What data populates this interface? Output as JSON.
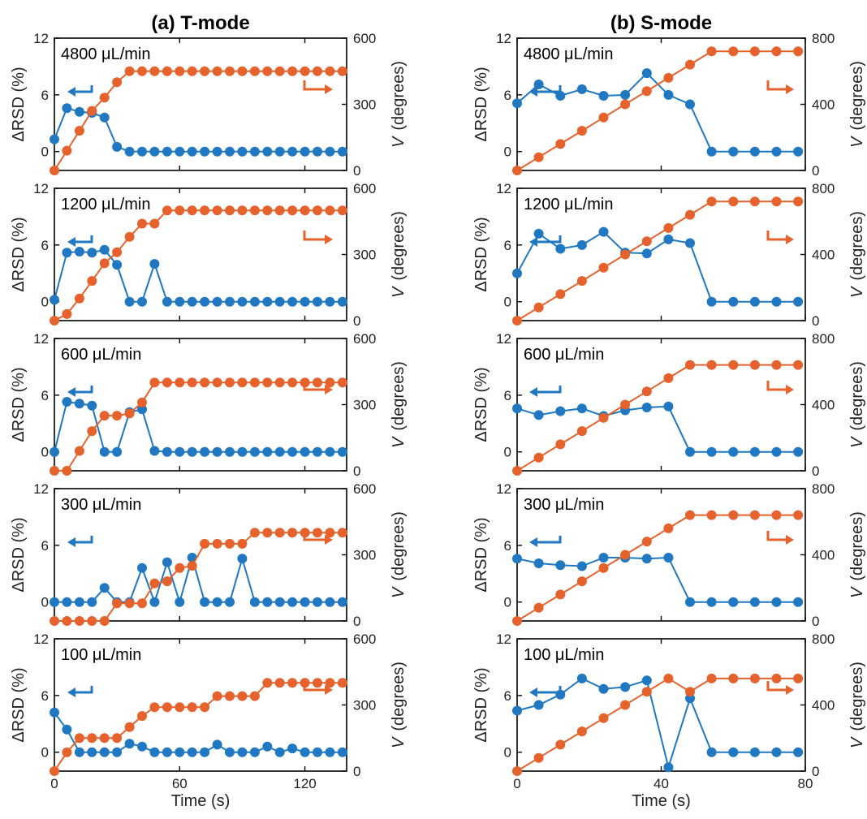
{
  "chart_data": [
    {
      "type": "line",
      "panel_title": "(a) T-mode",
      "annotation": "4800 μL/min",
      "xlabel": "",
      "ylabel": "ΔRSD (%)",
      "y2label": "(degrees)",
      "y2label_prefix": "V",
      "xlim": [
        0,
        140
      ],
      "ylim": [
        -2,
        12
      ],
      "y2lim": [
        0,
        600
      ],
      "x_ticks": [
        0,
        60,
        120
      ],
      "y_ticks": [
        0,
        6,
        12
      ],
      "y2_ticks": [
        0,
        300,
        600
      ],
      "x_tick_labels": [
        "",
        "",
        ""
      ],
      "y_tick_labels": [
        "0",
        "6",
        "12"
      ],
      "y2_tick_labels": [
        "0",
        "300",
        "600"
      ],
      "x": [
        0,
        6,
        12,
        18,
        24,
        30,
        36,
        42,
        48,
        54,
        60,
        66,
        72,
        78,
        84,
        90,
        96,
        102,
        108,
        114,
        120,
        126,
        132,
        138
      ],
      "series": [
        {
          "axis": "left",
          "color": "#1f78c1",
          "values": [
            1.3,
            4.6,
            4.2,
            4.1,
            3.6,
            0.5,
            0,
            0,
            0,
            0,
            0,
            0,
            0,
            0,
            0,
            0,
            0,
            0,
            0,
            0,
            0,
            0,
            0,
            0
          ]
        },
        {
          "axis": "right",
          "color": "#e5622d",
          "values": [
            0,
            90,
            180,
            270,
            330,
            400,
            450,
            450,
            450,
            450,
            450,
            450,
            450,
            450,
            450,
            450,
            450,
            450,
            450,
            450,
            450,
            450,
            450,
            450
          ]
        }
      ]
    },
    {
      "type": "line",
      "panel_title": "(b) S-mode",
      "annotation": "4800 μL/min",
      "xlabel": "",
      "ylabel": "ΔRSD (%)",
      "y2label": "(degrees)",
      "y2label_prefix": "V",
      "xlim": [
        0,
        80
      ],
      "ylim": [
        -2,
        12
      ],
      "y2lim": [
        0,
        800
      ],
      "x_ticks": [
        0,
        40,
        80
      ],
      "y_ticks": [
        0,
        6,
        12
      ],
      "y2_ticks": [
        0,
        400,
        800
      ],
      "x_tick_labels": [
        "",
        "",
        ""
      ],
      "y_tick_labels": [
        "0",
        "6",
        "12"
      ],
      "y2_tick_labels": [
        "0",
        "400",
        "800"
      ],
      "x": [
        0,
        6,
        12,
        18,
        24,
        30,
        36,
        42,
        48,
        54,
        60,
        66,
        72,
        78
      ],
      "series": [
        {
          "axis": "left",
          "color": "#1f78c1",
          "values": [
            5.1,
            7.1,
            5.9,
            6.6,
            5.9,
            6.0,
            8.3,
            6.0,
            5.0,
            0,
            0,
            0,
            0,
            0
          ]
        },
        {
          "axis": "right",
          "color": "#e5622d",
          "values": [
            0,
            80,
            160,
            240,
            320,
            400,
            480,
            560,
            640,
            720,
            720,
            720,
            720,
            720
          ]
        }
      ]
    },
    {
      "type": "line",
      "annotation": "1200 μL/min",
      "xlabel": "",
      "ylabel": "ΔRSD (%)",
      "y2label": "(degrees)",
      "y2label_prefix": "V",
      "xlim": [
        0,
        140
      ],
      "ylim": [
        -2,
        12
      ],
      "y2lim": [
        0,
        600
      ],
      "x_ticks": [
        0,
        60,
        120
      ],
      "y_ticks": [
        0,
        6,
        12
      ],
      "y2_ticks": [
        0,
        300,
        600
      ],
      "x_tick_labels": [
        "",
        "",
        ""
      ],
      "y_tick_labels": [
        "0",
        "6",
        "12"
      ],
      "y2_tick_labels": [
        "0",
        "300",
        "600"
      ],
      "x": [
        0,
        6,
        12,
        18,
        24,
        30,
        36,
        42,
        48,
        54,
        60,
        66,
        72,
        78,
        84,
        90,
        96,
        102,
        108,
        114,
        120,
        126,
        132,
        138
      ],
      "series": [
        {
          "axis": "left",
          "color": "#1f78c1",
          "values": [
            0.2,
            5.2,
            5.3,
            5.2,
            5.5,
            3.9,
            0,
            0,
            4.0,
            0,
            0,
            0,
            0,
            0,
            0,
            0,
            0,
            0,
            0,
            0,
            0,
            0,
            0,
            0
          ]
        },
        {
          "axis": "right",
          "color": "#e5622d",
          "values": [
            0,
            30,
            100,
            180,
            260,
            310,
            380,
            440,
            440,
            500,
            500,
            500,
            500,
            500,
            500,
            500,
            500,
            500,
            500,
            500,
            500,
            500,
            500,
            500
          ]
        }
      ]
    },
    {
      "type": "line",
      "annotation": "1200 μL/min",
      "xlabel": "",
      "ylabel": "ΔRSD (%)",
      "y2label": "(degrees)",
      "y2label_prefix": "V",
      "xlim": [
        0,
        80
      ],
      "ylim": [
        -2,
        12
      ],
      "y2lim": [
        0,
        800
      ],
      "x_ticks": [
        0,
        40,
        80
      ],
      "y_ticks": [
        0,
        6,
        12
      ],
      "y2_ticks": [
        0,
        400,
        800
      ],
      "x_tick_labels": [
        "",
        "",
        ""
      ],
      "y_tick_labels": [
        "0",
        "6",
        "12"
      ],
      "y2_tick_labels": [
        "0",
        "400",
        "800"
      ],
      "x": [
        0,
        6,
        12,
        18,
        24,
        30,
        36,
        42,
        48,
        54,
        60,
        66,
        72,
        78
      ],
      "series": [
        {
          "axis": "left",
          "color": "#1f78c1",
          "values": [
            3.0,
            7.2,
            5.6,
            6.0,
            7.4,
            5.2,
            5.1,
            6.6,
            6.2,
            0,
            0,
            0,
            0,
            0
          ]
        },
        {
          "axis": "right",
          "color": "#e5622d",
          "values": [
            0,
            80,
            160,
            240,
            320,
            400,
            480,
            560,
            640,
            720,
            720,
            720,
            720,
            720
          ]
        }
      ]
    },
    {
      "type": "line",
      "annotation": "600 μL/min",
      "xlabel": "",
      "ylabel": "ΔRSD (%)",
      "y2label": "(degrees)",
      "y2label_prefix": "V",
      "xlim": [
        0,
        140
      ],
      "ylim": [
        -2,
        12
      ],
      "y2lim": [
        0,
        600
      ],
      "x_ticks": [
        0,
        60,
        120
      ],
      "y_ticks": [
        0,
        6,
        12
      ],
      "y2_ticks": [
        0,
        300,
        600
      ],
      "x_tick_labels": [
        "",
        "",
        ""
      ],
      "y_tick_labels": [
        "0",
        "6",
        "12"
      ],
      "y2_tick_labels": [
        "0",
        "300",
        "600"
      ],
      "x": [
        0,
        6,
        12,
        18,
        24,
        30,
        36,
        42,
        48,
        54,
        60,
        66,
        72,
        78,
        84,
        90,
        96,
        102,
        108,
        114,
        120,
        126,
        132,
        138
      ],
      "series": [
        {
          "axis": "left",
          "color": "#1f78c1",
          "values": [
            0,
            5.3,
            5.1,
            4.9,
            0,
            0,
            4.2,
            4.5,
            0.1,
            0,
            0,
            0,
            0,
            0,
            0,
            0,
            0,
            0,
            0,
            0,
            0,
            0,
            0,
            0
          ]
        },
        {
          "axis": "right",
          "color": "#e5622d",
          "values": [
            0,
            0,
            90,
            180,
            250,
            250,
            260,
            310,
            400,
            400,
            400,
            400,
            400,
            400,
            400,
            400,
            400,
            400,
            400,
            400,
            400,
            400,
            400,
            400
          ]
        }
      ]
    },
    {
      "type": "line",
      "annotation": "600 μL/min",
      "xlabel": "",
      "ylabel": "ΔRSD (%)",
      "y2label": "(degrees)",
      "y2label_prefix": "V",
      "xlim": [
        0,
        80
      ],
      "ylim": [
        -2,
        12
      ],
      "y2lim": [
        0,
        800
      ],
      "x_ticks": [
        0,
        40,
        80
      ],
      "y_ticks": [
        0,
        6,
        12
      ],
      "y2_ticks": [
        0,
        400,
        800
      ],
      "x_tick_labels": [
        "",
        "",
        ""
      ],
      "y_tick_labels": [
        "0",
        "6",
        "12"
      ],
      "y2_tick_labels": [
        "0",
        "400",
        "800"
      ],
      "x": [
        0,
        6,
        12,
        18,
        24,
        30,
        36,
        42,
        48,
        54,
        60,
        66,
        72,
        78
      ],
      "series": [
        {
          "axis": "left",
          "color": "#1f78c1",
          "values": [
            4.6,
            3.9,
            4.3,
            4.6,
            3.8,
            4.4,
            4.7,
            4.8,
            0,
            0,
            0,
            0,
            0,
            0
          ]
        },
        {
          "axis": "right",
          "color": "#e5622d",
          "values": [
            0,
            80,
            160,
            240,
            320,
            400,
            480,
            560,
            640,
            640,
            640,
            640,
            640,
            640
          ]
        }
      ]
    },
    {
      "type": "line",
      "annotation": "300 μL/min",
      "xlabel": "",
      "ylabel": "ΔRSD (%)",
      "y2label": "(degrees)",
      "y2label_prefix": "V",
      "xlim": [
        0,
        140
      ],
      "ylim": [
        -2,
        12
      ],
      "y2lim": [
        0,
        600
      ],
      "x_ticks": [
        0,
        60,
        120
      ],
      "y_ticks": [
        0,
        6,
        12
      ],
      "y2_ticks": [
        0,
        300,
        600
      ],
      "x_tick_labels": [
        "",
        "",
        ""
      ],
      "y_tick_labels": [
        "0",
        "6",
        "12"
      ],
      "y2_tick_labels": [
        "0",
        "300",
        "600"
      ],
      "x": [
        0,
        6,
        12,
        18,
        24,
        30,
        36,
        42,
        48,
        54,
        60,
        66,
        72,
        78,
        84,
        90,
        96,
        102,
        108,
        114,
        120,
        126,
        132,
        138
      ],
      "series": [
        {
          "axis": "left",
          "color": "#1f78c1",
          "values": [
            0,
            0,
            0,
            0,
            1.5,
            0,
            0,
            3.6,
            0,
            4.2,
            0,
            4.7,
            0,
            0,
            0,
            4.6,
            0,
            0,
            0,
            0,
            0,
            0,
            0,
            0
          ]
        },
        {
          "axis": "right",
          "color": "#e5622d",
          "values": [
            0,
            0,
            0,
            0,
            0,
            80,
            80,
            80,
            170,
            180,
            240,
            250,
            350,
            350,
            350,
            350,
            400,
            400,
            400,
            400,
            400,
            400,
            400,
            400
          ]
        }
      ]
    },
    {
      "type": "line",
      "annotation": "300 μL/min",
      "xlabel": "",
      "ylabel": "ΔRSD (%)",
      "y2label": "(degrees)",
      "y2label_prefix": "V",
      "xlim": [
        0,
        80
      ],
      "ylim": [
        -2,
        12
      ],
      "y2lim": [
        0,
        800
      ],
      "x_ticks": [
        0,
        40,
        80
      ],
      "y_ticks": [
        0,
        6,
        12
      ],
      "y2_ticks": [
        0,
        400,
        800
      ],
      "x_tick_labels": [
        "",
        "",
        ""
      ],
      "y_tick_labels": [
        "0",
        "6",
        "12"
      ],
      "y2_tick_labels": [
        "0",
        "400",
        "800"
      ],
      "x": [
        0,
        6,
        12,
        18,
        24,
        30,
        36,
        42,
        48,
        54,
        60,
        66,
        72,
        78
      ],
      "series": [
        {
          "axis": "left",
          "color": "#1f78c1",
          "values": [
            4.6,
            4.1,
            3.9,
            3.8,
            4.7,
            4.7,
            4.6,
            4.7,
            0,
            0,
            0,
            0,
            0,
            0
          ]
        },
        {
          "axis": "right",
          "color": "#e5622d",
          "values": [
            0,
            80,
            160,
            240,
            320,
            400,
            480,
            560,
            640,
            640,
            640,
            640,
            640,
            640
          ]
        }
      ]
    },
    {
      "type": "line",
      "annotation": "100 μL/min",
      "xlabel": "Time (s)",
      "ylabel": "ΔRSD (%)",
      "y2label": "(degrees)",
      "y2label_prefix": "V",
      "xlim": [
        0,
        140
      ],
      "ylim": [
        -2,
        12
      ],
      "y2lim": [
        0,
        600
      ],
      "x_ticks": [
        0,
        60,
        120
      ],
      "y_ticks": [
        0,
        6,
        12
      ],
      "y2_ticks": [
        0,
        300,
        600
      ],
      "x_tick_labels": [
        "0",
        "60",
        "120"
      ],
      "y_tick_labels": [
        "0",
        "6",
        "12"
      ],
      "y2_tick_labels": [
        "0",
        "300",
        "600"
      ],
      "x": [
        0,
        6,
        12,
        18,
        24,
        30,
        36,
        42,
        48,
        54,
        60,
        66,
        72,
        78,
        84,
        90,
        96,
        102,
        108,
        114,
        120,
        126,
        132,
        138
      ],
      "series": [
        {
          "axis": "left",
          "color": "#1f78c1",
          "values": [
            4.2,
            2.4,
            0,
            0,
            0,
            0,
            0.9,
            0.6,
            0,
            0,
            0,
            0,
            0,
            0.8,
            0,
            0,
            0,
            0.6,
            0,
            0.4,
            0,
            0,
            0,
            0
          ]
        },
        {
          "axis": "right",
          "color": "#e5622d",
          "values": [
            0,
            85,
            150,
            150,
            150,
            150,
            200,
            250,
            290,
            290,
            290,
            290,
            290,
            340,
            340,
            340,
            340,
            400,
            400,
            400,
            400,
            400,
            400,
            400
          ]
        }
      ]
    },
    {
      "type": "line",
      "annotation": "100 μL/min",
      "xlabel": "Time (s)",
      "ylabel": "ΔRSD (%)",
      "y2label": "(degrees)",
      "y2label_prefix": "V",
      "xlim": [
        0,
        80
      ],
      "ylim": [
        -2,
        12
      ],
      "y2lim": [
        0,
        800
      ],
      "x_ticks": [
        0,
        40,
        80
      ],
      "y_ticks": [
        0,
        6,
        12
      ],
      "y2_ticks": [
        0,
        400,
        800
      ],
      "x_tick_labels": [
        "0",
        "40",
        "80"
      ],
      "y_tick_labels": [
        "0",
        "6",
        "12"
      ],
      "y2_tick_labels": [
        "0",
        "400",
        "800"
      ],
      "x": [
        0,
        6,
        12,
        18,
        24,
        30,
        36,
        42,
        48,
        54,
        60,
        66,
        72,
        78
      ],
      "series": [
        {
          "axis": "left",
          "color": "#1f78c1",
          "values": [
            4.4,
            5.0,
            6.1,
            7.8,
            6.7,
            6.9,
            7.6,
            -1.6,
            5.7,
            0,
            0,
            0,
            0,
            0
          ]
        },
        {
          "axis": "right",
          "color": "#e5622d",
          "values": [
            0,
            80,
            160,
            240,
            320,
            400,
            480,
            560,
            480,
            560,
            560,
            560,
            560,
            560
          ]
        }
      ]
    }
  ]
}
